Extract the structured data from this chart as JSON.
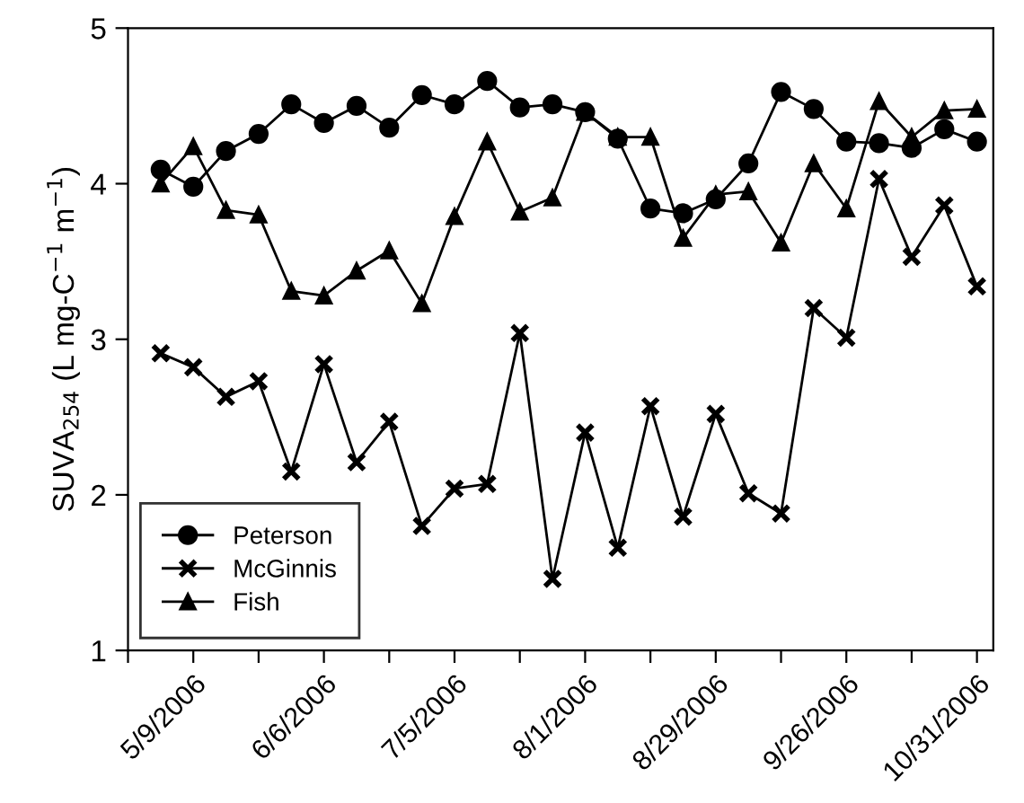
{
  "chart_data": {
    "type": "line",
    "ylabel": "SUVA$_{254}$ (L mg-C$^{−1}$ m$^{−1}$)",
    "categories": [
      null,
      "5/9/2006",
      null,
      null,
      null,
      "6/6/2006",
      null,
      null,
      null,
      "7/5/2006",
      null,
      null,
      null,
      "8/1/2006",
      null,
      null,
      null,
      "8/29/2006",
      null,
      null,
      null,
      "9/26/2006",
      null,
      null,
      null,
      "10/31/2006"
    ],
    "series": [
      {
        "name": "Peterson",
        "color": "#000000",
        "marker": "circle",
        "values": [
          4.09,
          3.98,
          4.21,
          4.32,
          4.51,
          4.39,
          4.5,
          4.36,
          4.57,
          4.51,
          4.66,
          4.49,
          4.51,
          4.46,
          4.29,
          3.84,
          3.81,
          3.9,
          4.13,
          4.59,
          4.48,
          4.27,
          4.26,
          4.23,
          4.35,
          4.27
        ]
      },
      {
        "name": "McGinnis",
        "color": "#000000",
        "marker": "cross",
        "values": [
          2.91,
          2.82,
          2.63,
          2.73,
          2.15,
          2.84,
          2.21,
          2.47,
          1.8,
          2.04,
          2.07,
          3.04,
          1.46,
          2.4,
          1.66,
          2.57,
          1.86,
          2.52,
          2.01,
          1.88,
          3.2,
          3.01,
          4.03,
          3.53,
          3.86,
          3.34
        ]
      },
      {
        "name": "Fish",
        "color": "#000000",
        "marker": "triangle",
        "values": [
          4.0,
          4.24,
          3.83,
          3.8,
          3.31,
          3.28,
          3.44,
          3.57,
          3.23,
          3.79,
          4.27,
          3.82,
          3.91,
          4.46,
          4.3,
          4.3,
          3.65,
          3.93,
          3.95,
          3.62,
          4.13,
          3.84,
          4.53,
          4.3,
          4.47,
          4.48
        ]
      }
    ],
    "ylim": [
      1,
      5
    ],
    "yticks": [
      1,
      2,
      3,
      4,
      5
    ],
    "grid": false,
    "legend": "bottom left",
    "line_style": "solid"
  }
}
